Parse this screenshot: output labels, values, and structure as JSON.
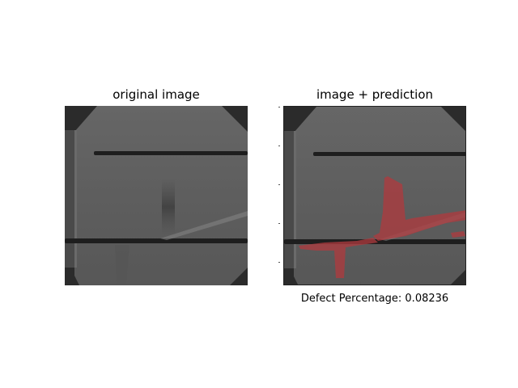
{
  "panels": {
    "left": {
      "title": "original image"
    },
    "right": {
      "title": "image + prediction"
    }
  },
  "caption": {
    "text": "Defect Percentage: 0.08236"
  },
  "colors": {
    "cell_bg": "#5c5c5c",
    "corner_dark": "#2a2a2a",
    "busbar": "#1e1e1e",
    "defect_overlay": "#b03a3e"
  },
  "icons": [
    "solar-cell-image",
    "solar-cell-prediction-overlay"
  ]
}
